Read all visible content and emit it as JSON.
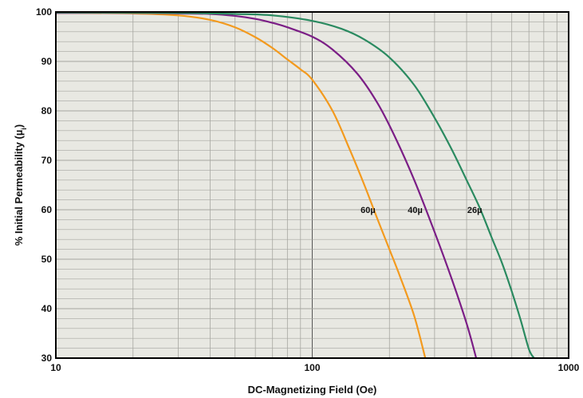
{
  "chart_data": {
    "type": "line",
    "title": "",
    "xlabel": "DC-Magnetizing Field (Oe)",
    "ylabel": "% Initial Permeability (µ",
    "ylabel_sub": "i",
    "ylabel_close": ")",
    "x_scale": "log",
    "xlim": [
      10,
      1000
    ],
    "ylim": [
      30,
      100
    ],
    "x_ticks": [
      {
        "value": 10,
        "label": "10"
      },
      {
        "value": 100,
        "label": "100"
      },
      {
        "value": 1000,
        "label": "1000"
      }
    ],
    "y_ticks": [
      {
        "value": 30,
        "label": "30"
      },
      {
        "value": 40,
        "label": "40"
      },
      {
        "value": 50,
        "label": "50"
      },
      {
        "value": 60,
        "label": "60"
      },
      {
        "value": 70,
        "label": "70"
      },
      {
        "value": 80,
        "label": "80"
      },
      {
        "value": 90,
        "label": "90"
      },
      {
        "value": 100,
        "label": "100"
      }
    ],
    "grid": true,
    "background_color": "#e8e8e2",
    "grid_color": "#a6a6a0",
    "series": [
      {
        "name": "60µ",
        "color": "#f39a1e",
        "label_at": {
          "x": 165,
          "y": 60
        },
        "points": [
          [
            10,
            99.8
          ],
          [
            20,
            99.7
          ],
          [
            30,
            99.3
          ],
          [
            40,
            98.4
          ],
          [
            50,
            96.9
          ],
          [
            60,
            94.9
          ],
          [
            70,
            92.7
          ],
          [
            80,
            90.4
          ],
          [
            90,
            88.4
          ],
          [
            100,
            86.3
          ],
          [
            120,
            80
          ],
          [
            140,
            72.2
          ],
          [
            160,
            64.9
          ],
          [
            180,
            58
          ],
          [
            200,
            52
          ],
          [
            220,
            46.5
          ],
          [
            250,
            38.5
          ],
          [
            276,
            30
          ]
        ]
      },
      {
        "name": "40µ",
        "color": "#7b1e86",
        "label_at": {
          "x": 252,
          "y": 60
        },
        "points": [
          [
            10,
            99.8
          ],
          [
            20,
            99.8
          ],
          [
            30,
            99.7
          ],
          [
            40,
            99.6
          ],
          [
            50,
            99.2
          ],
          [
            60,
            98.6
          ],
          [
            70,
            97.8
          ],
          [
            80,
            96.9
          ],
          [
            100,
            95
          ],
          [
            120,
            92.4
          ],
          [
            150,
            87.5
          ],
          [
            180,
            81.5
          ],
          [
            210,
            74.8
          ],
          [
            250,
            66
          ],
          [
            300,
            55.5
          ],
          [
            350,
            46
          ],
          [
            400,
            37
          ],
          [
            436,
            30
          ]
        ]
      },
      {
        "name": "26µ",
        "color": "#2a8a60",
        "label_at": {
          "x": 430,
          "y": 60
        },
        "points": [
          [
            10,
            99.9
          ],
          [
            30,
            99.8
          ],
          [
            50,
            99.6
          ],
          [
            70,
            99.3
          ],
          [
            100,
            98.2
          ],
          [
            130,
            96.6
          ],
          [
            160,
            94.4
          ],
          [
            200,
            90.8
          ],
          [
            250,
            85.2
          ],
          [
            300,
            78.6
          ],
          [
            350,
            72.2
          ],
          [
            400,
            66
          ],
          [
            450,
            60.4
          ],
          [
            500,
            54.5
          ],
          [
            550,
            49.2
          ],
          [
            600,
            43.5
          ],
          [
            650,
            37.7
          ],
          [
            700,
            31.8
          ],
          [
            733,
            30
          ]
        ]
      }
    ]
  }
}
